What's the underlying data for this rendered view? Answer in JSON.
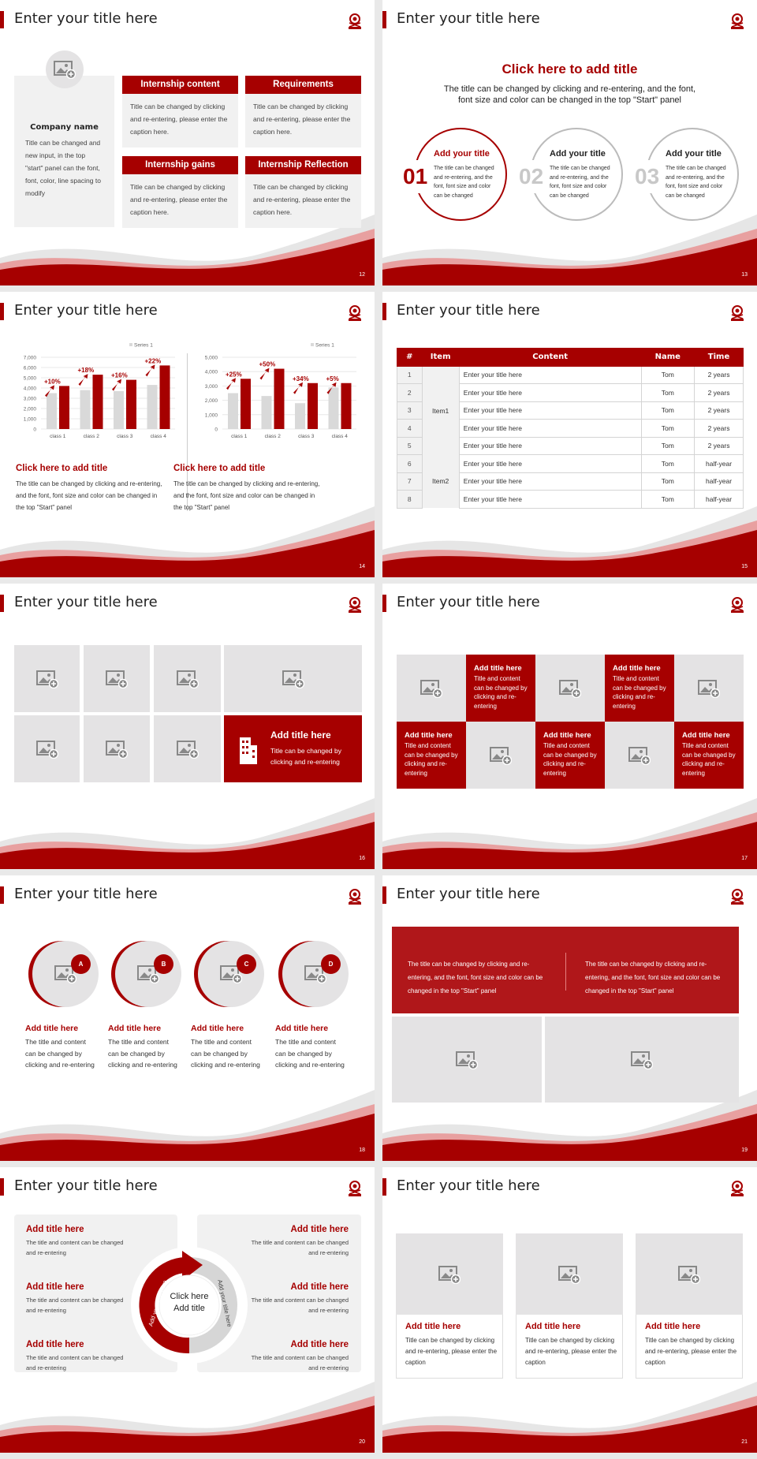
{
  "common": {
    "slide_title": "Enter your title here"
  },
  "colors": {
    "accent": "#a60000",
    "panel": "#f1f1f1",
    "tile": "#e4e3e4",
    "chart_gray": "#d9d9d9"
  },
  "slides": [
    {
      "page": "12",
      "company": {
        "name": "Company name",
        "text": "Title can be changed and new input, in the top \"start\" panel can the font, font, color, line spacing to modify"
      },
      "boxes": [
        {
          "title": "Internship content",
          "text": "Title can be changed by clicking and re-entering, please enter the caption here."
        },
        {
          "title": "Requirements",
          "text": "Title can be changed by clicking and re-entering, please enter the caption here."
        },
        {
          "title": "Internship gains",
          "text": "Title can be changed by clicking and re-entering, please enter the caption here."
        },
        {
          "title": "Internship Reflection",
          "text": "Title can be changed by clicking and re-entering, please enter the caption here."
        }
      ]
    },
    {
      "page": "13",
      "heading": "Click here to add title",
      "sub": "The title can be changed by clicking and re-entering, and the font, font size and color can be changed in the top \"Start\" panel",
      "circles": [
        {
          "num": "01",
          "title": "Add your title",
          "text": "The title can be changed and re-entering, and the font, font size and color can be changed",
          "active": true
        },
        {
          "num": "02",
          "title": "Add your title",
          "text": "The title can be changed and re-entering, and the font, font size and color can be changed",
          "active": false
        },
        {
          "num": "03",
          "title": "Add your title",
          "text": "The title can be changed and re-entering, and the font, font size and color can be changed",
          "active": false
        }
      ]
    },
    {
      "page": "14",
      "captions": [
        {
          "title": "Click here to add title",
          "text": "The title can be changed by clicking and re-entering, and the font, font size and color can be changed in the top \"Start\" panel"
        },
        {
          "title": "Click here to add title",
          "text": "The title can be changed by clicking and re-entering, and the font, font size and color can be changed in the top \"Start\" panel"
        }
      ]
    },
    {
      "page": "15",
      "table": {
        "headers": [
          "#",
          "Item",
          "Content",
          "Name",
          "Time"
        ],
        "groups": [
          "Item1",
          "Item2"
        ],
        "rows": [
          [
            "1",
            "Enter your title here",
            "Tom",
            "2 years"
          ],
          [
            "2",
            "Enter your title here",
            "Tom",
            "2 years"
          ],
          [
            "3",
            "Enter your title here",
            "Tom",
            "2 years"
          ],
          [
            "4",
            "Enter your title here",
            "Tom",
            "2 years"
          ],
          [
            "5",
            "Enter your title here",
            "Tom",
            "2 years"
          ],
          [
            "6",
            "Enter your title here",
            "Tom",
            "half-year"
          ],
          [
            "7",
            "Enter your title here",
            "Tom",
            "half-year"
          ],
          [
            "8",
            "Enter your title here",
            "Tom",
            "half-year"
          ]
        ]
      }
    },
    {
      "page": "16",
      "feature": {
        "title": "Add title here",
        "text": "Title can be changed by clicking and re-entering"
      }
    },
    {
      "page": "17",
      "tile_title": "Add title here",
      "tile_text": "Title and content can be changed by clicking and re-entering"
    },
    {
      "page": "18",
      "items": [
        {
          "letter": "A",
          "title": "Add title here",
          "text": "The title and content can be changed by clicking and re-entering"
        },
        {
          "letter": "B",
          "title": "Add title here",
          "text": "The title and content can be changed by clicking and re-entering"
        },
        {
          "letter": "C",
          "title": "Add title here",
          "text": "The title and content can be changed by clicking and re-entering"
        },
        {
          "letter": "D",
          "title": "Add title here",
          "text": "The title and content can be changed by clicking and re-entering"
        }
      ]
    },
    {
      "page": "19",
      "texts": [
        "The title can be changed by clicking and re-entering, and the font, font size and color can be changed in the top \"Start\" panel",
        "The title can be changed by clicking and re-entering, and the font, font size and color can be changed in the top \"Start\" panel"
      ]
    },
    {
      "page": "20",
      "center": [
        "Click here",
        "Add title"
      ],
      "arc_left": "Add your title here",
      "arc_right": "Add your title here",
      "item_title": "Add title here",
      "item_text": "The title and content can be changed and re-entering"
    },
    {
      "page": "21",
      "cards": [
        {
          "title": "Add title here",
          "text": "Title can be changed by clicking and re-entering, please enter the caption"
        },
        {
          "title": "Add title here",
          "text": "Title can be changed by clicking and re-entering, please enter the caption"
        },
        {
          "title": "Add title here",
          "text": "Title can be changed by clicking and re-entering, please enter the caption"
        }
      ]
    }
  ],
  "chart_data": [
    {
      "type": "bar",
      "legend": "Series 1",
      "legend_position": "top-right",
      "categories": [
        "class 1",
        "class 2",
        "class 3",
        "class 4"
      ],
      "ylim": [
        0,
        7000
      ],
      "yticks": [
        "0",
        "1,000",
        "2,000",
        "3,000",
        "4,000",
        "5,000",
        "6,000",
        "7,000"
      ],
      "series": [
        {
          "values": [
            3500,
            3800,
            3700,
            4300
          ],
          "color": "#d9d9d9"
        },
        {
          "name": "Series 1",
          "values": [
            4200,
            5300,
            4800,
            6200
          ],
          "color": "#a60000"
        }
      ],
      "annotations": [
        "+10%",
        "+18%",
        "+16%",
        "+22%"
      ],
      "grid": true
    },
    {
      "type": "bar",
      "legend": "Series 1",
      "legend_position": "top-right",
      "categories": [
        "class 1",
        "class 2",
        "class 3",
        "class 4"
      ],
      "ylim": [
        0,
        5000
      ],
      "yticks": [
        "0",
        "1,000",
        "2,000",
        "3,000",
        "4,000",
        "5,000"
      ],
      "series": [
        {
          "values": [
            2500,
            2300,
            1800,
            2900
          ],
          "color": "#d9d9d9"
        },
        {
          "name": "Series 1",
          "values": [
            3500,
            4200,
            3200,
            3200
          ],
          "color": "#a60000"
        }
      ],
      "annotations": [
        "+25%",
        "+50%",
        "+34%",
        "+5%"
      ],
      "grid": true
    }
  ]
}
